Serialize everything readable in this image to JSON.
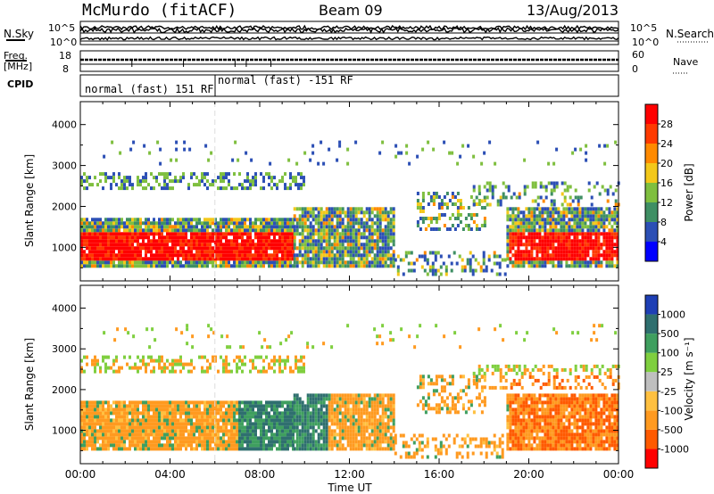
{
  "header": {
    "station": "McMurdo (fitACF)",
    "beam": "Beam 09",
    "date": "13/Aug/2013"
  },
  "top_panels": {
    "nsky_label": "N.Sky",
    "nsearch_label": "N.Search",
    "noise_ticks": [
      "10^5",
      "10^0"
    ],
    "freq_label_1": "Freq.",
    "freq_label_2": "[MHz]",
    "freq_ticks": [
      "18",
      "8"
    ],
    "nave_label": "Nave",
    "nave_ticks": [
      "60",
      "0"
    ],
    "cpid_label": "CPID",
    "cpid_segments": [
      {
        "text": "normal (fast) 151 RF",
        "start_hour": 0,
        "end_hour": 6
      },
      {
        "text": "normal (fast) -151 RF",
        "start_hour": 6,
        "end_hour": 24
      }
    ]
  },
  "chart_data": [
    {
      "type": "heatmap",
      "title": "",
      "xlabel": "",
      "ylabel": "Slant Range [km]",
      "x_ticks": [
        "00:00",
        "04:00",
        "08:00",
        "12:00",
        "16:00",
        "20:00",
        "00:00"
      ],
      "x_range_hours": [
        0,
        24
      ],
      "y_ticks": [
        1000,
        2000,
        3000,
        4000
      ],
      "y_range": [
        180,
        4560
      ],
      "colorbar": {
        "label": "Power [dB]",
        "tick_labels": [
          "4",
          "8",
          "12",
          "16",
          "20",
          "24",
          "28"
        ],
        "colors": [
          "#0000ff",
          "#2c4fb5",
          "#3f8f64",
          "#7fbf3f",
          "#f3c81a",
          "#ff8a00",
          "#ff3a00",
          "#ff0000"
        ]
      }
    },
    {
      "type": "heatmap",
      "title": "",
      "xlabel": "Time UT",
      "ylabel": "Slant Range [km]",
      "x_ticks": [
        "00:00",
        "04:00",
        "08:00",
        "12:00",
        "16:00",
        "20:00",
        "00:00"
      ],
      "x_range_hours": [
        0,
        24
      ],
      "y_ticks": [
        1000,
        2000,
        3000,
        4000
      ],
      "y_range": [
        180,
        4560
      ],
      "colorbar": {
        "label": "Velocity [m s⁻¹]",
        "tick_labels": [
          "1000",
          "500",
          "100",
          "25",
          "-25",
          "-100",
          "-500",
          "-1000"
        ],
        "colors": [
          "#1e3fb5",
          "#2f6f6f",
          "#3f9f5f",
          "#7fcf3f",
          "#bfbfbf",
          "#ffc040",
          "#ff9a20",
          "#ff5a00",
          "#ff0000"
        ]
      }
    }
  ]
}
